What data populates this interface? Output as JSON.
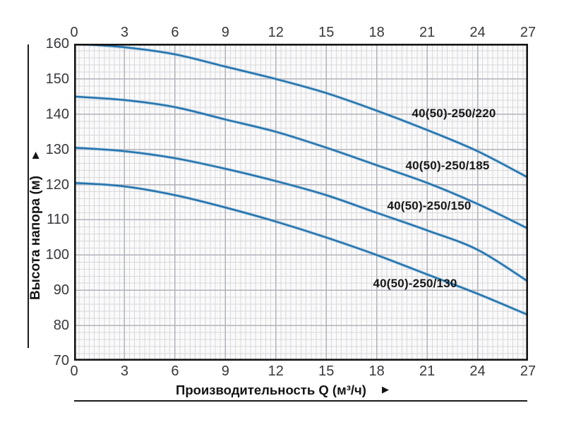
{
  "chart_data": {
    "type": "line",
    "title": "",
    "xlabel": "Производительность Q (м³/ч)",
    "ylabel": "Высота напора (м)",
    "axis_arrow": "▶",
    "x": [
      0,
      3,
      6,
      9,
      12,
      15,
      18,
      21,
      24,
      27
    ],
    "x_tick_sides": [
      "top",
      "bottom"
    ],
    "y_ticks": [
      160,
      150,
      140,
      130,
      120,
      110,
      100,
      90,
      80,
      70
    ],
    "xlim": [
      0,
      27
    ],
    "ylim": [
      70,
      160
    ],
    "grid": {
      "on": true,
      "x_major_step": 3,
      "x_minor_step": 0.3,
      "y_major_step": 10,
      "y_minor_step": 2
    },
    "legend_position": "inline-curve-labels",
    "series": [
      {
        "name": "40(50)-250/220",
        "values": [
          160,
          159,
          157,
          153.5,
          150,
          146,
          141,
          135.5,
          129.5,
          122
        ]
      },
      {
        "name": "40(50)-250/185",
        "values": [
          145,
          144,
          142,
          138.5,
          135,
          130.5,
          125.5,
          120.5,
          114.5,
          107.5
        ]
      },
      {
        "name": "40(50)-250/150",
        "values": [
          130.5,
          129.5,
          127.5,
          124.5,
          121,
          117,
          112,
          107,
          101.5,
          92.5
        ]
      },
      {
        "name": "40(50)-250/130",
        "values": [
          120.5,
          119.5,
          117,
          113.5,
          109.5,
          105,
          100,
          94.5,
          89,
          83
        ]
      }
    ],
    "line_color": "#2474ae",
    "line_halo_color": "#8db9d8",
    "plot_bg": "#fafafa",
    "grid_minor_color": "#d8d8dc",
    "grid_major_color": "#b2b2ba",
    "frame_color": "#141414",
    "text_color": "#38383c"
  }
}
